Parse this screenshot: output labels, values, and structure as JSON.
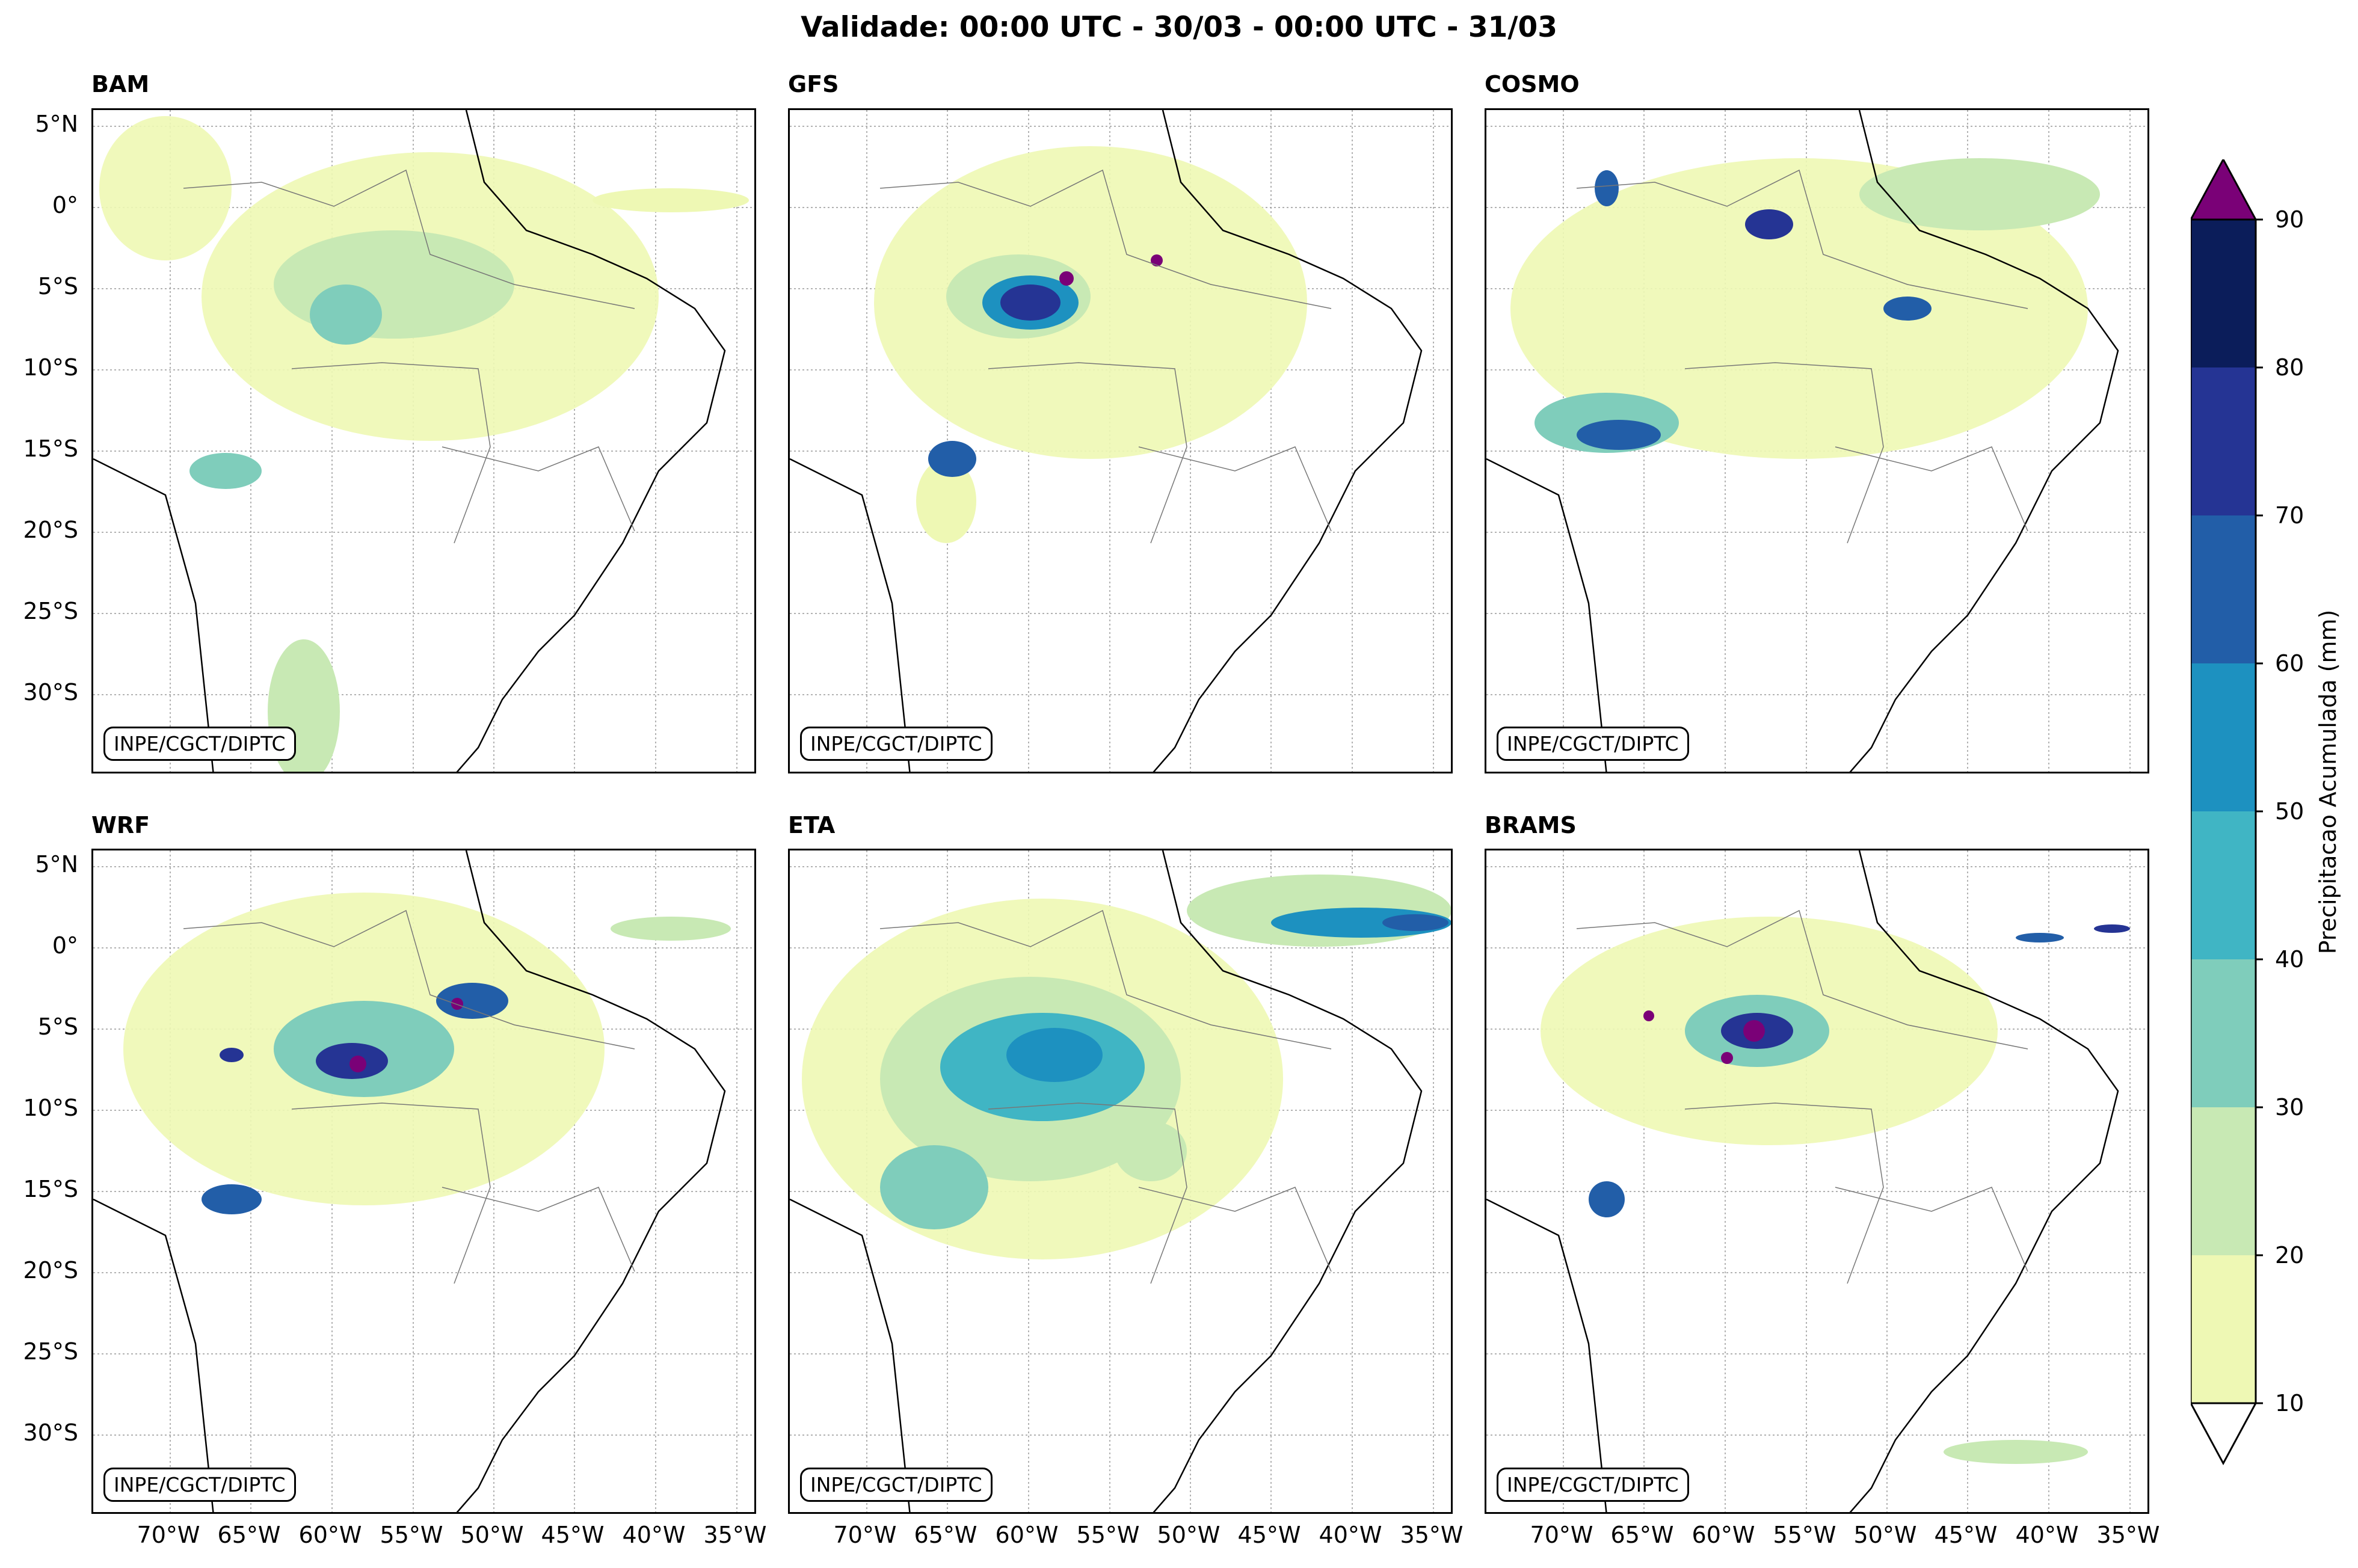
{
  "title": "Validade: 00:00 UTC - 30/03 - 00:00 UTC - 31/03",
  "credit": "INPE/CGCT/DIPTC",
  "panels": [
    {
      "name": "BAM"
    },
    {
      "name": "GFS"
    },
    {
      "name": "COSMO"
    },
    {
      "name": "WRF"
    },
    {
      "name": "ETA"
    },
    {
      "name": "BRAMS"
    }
  ],
  "lat_labels": [
    "5°N",
    "0°",
    "5°S",
    "10°S",
    "15°S",
    "20°S",
    "25°S",
    "30°S"
  ],
  "lon_labels": [
    "70°W",
    "65°W",
    "60°W",
    "55°W",
    "50°W",
    "45°W",
    "40°W",
    "35°W"
  ],
  "colorbar": {
    "label": "Precipitacao Acumulada (mm)",
    "ticks": [
      "10",
      "20",
      "30",
      "40",
      "50",
      "60",
      "70",
      "80",
      "90"
    ],
    "colors": [
      "#eef8b4",
      "#c8e9b4",
      "#7fcdbb",
      "#40b5c4",
      "#1d91c0",
      "#225ea8",
      "#253494",
      "#0b1d5a"
    ],
    "over_color": "#7a0177",
    "under_color": "#ffffff"
  }
}
